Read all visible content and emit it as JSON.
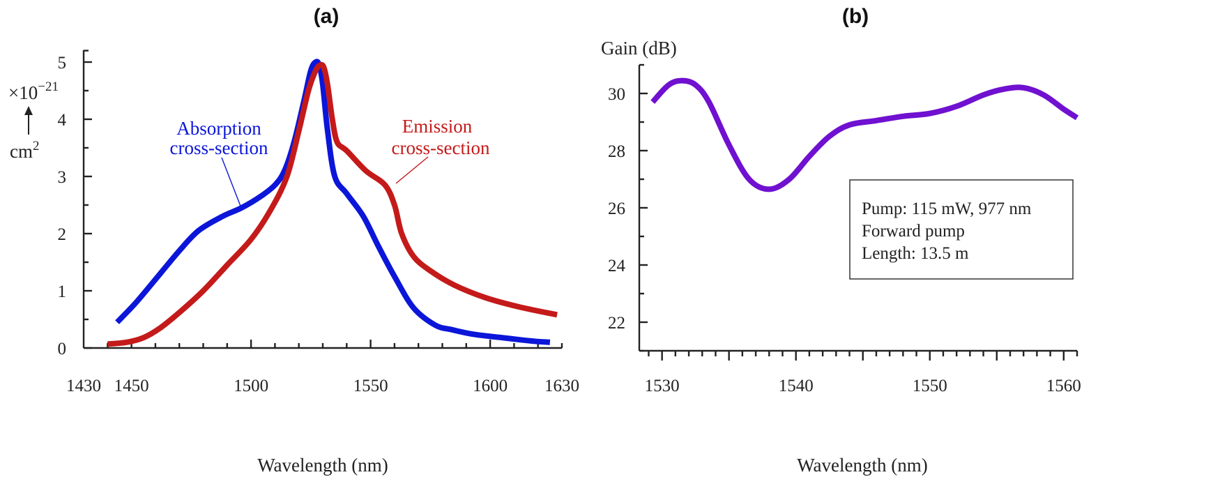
{
  "chart_data": [
    {
      "type": "line",
      "panel_label": "(a)",
      "xlabel": "Wavelength (nm)",
      "ylabel": "cm",
      "ylabel_exponent": "2",
      "y_multiplier": "×10",
      "y_multiplier_exponent": "−21",
      "xlim": [
        1430,
        1630
      ],
      "ylim": [
        0,
        5
      ],
      "x_ticks": [
        1430,
        1450,
        1500,
        1550,
        1600,
        1630
      ],
      "y_ticks": [
        0,
        1,
        2,
        3,
        4,
        5
      ],
      "series": [
        {
          "name": "Absorption cross-section",
          "label_line1": "Absorption",
          "label_line2": "cross-section",
          "color": "#0b16d9",
          "x": [
            1444,
            1452,
            1462,
            1470,
            1478,
            1488,
            1496,
            1504,
            1510,
            1514,
            1518,
            1522,
            1525,
            1527,
            1528.5,
            1530,
            1532,
            1535,
            1540,
            1547,
            1553,
            1560,
            1568,
            1577,
            1584,
            1593,
            1605,
            1618,
            1625
          ],
          "y": [
            0.45,
            0.8,
            1.3,
            1.7,
            2.05,
            2.3,
            2.45,
            2.65,
            2.85,
            3.1,
            3.6,
            4.3,
            4.85,
            5.0,
            4.95,
            4.6,
            3.8,
            3.0,
            2.7,
            2.3,
            1.8,
            1.25,
            0.7,
            0.4,
            0.32,
            0.24,
            0.18,
            0.12,
            0.1
          ]
        },
        {
          "name": "Emission cross-section",
          "label_line1": "Emission",
          "label_line2": "cross-section",
          "color": "#c41a1a",
          "x": [
            1440,
            1448,
            1455,
            1462,
            1470,
            1480,
            1490,
            1500,
            1508,
            1515,
            1520,
            1524,
            1527,
            1529,
            1530.5,
            1532,
            1534,
            1536,
            1540,
            1548,
            1556,
            1560,
            1563,
            1568,
            1575,
            1585,
            1598,
            1612,
            1628
          ],
          "y": [
            0.07,
            0.1,
            0.18,
            0.35,
            0.62,
            1.0,
            1.45,
            1.9,
            2.4,
            3.0,
            3.8,
            4.5,
            4.85,
            4.95,
            4.9,
            4.6,
            4.0,
            3.6,
            3.45,
            3.1,
            2.85,
            2.5,
            2.0,
            1.6,
            1.35,
            1.1,
            0.88,
            0.72,
            0.58
          ]
        }
      ]
    },
    {
      "type": "line",
      "panel_label": "(b)",
      "xlabel": "Wavelength (nm)",
      "ylabel": "Gain (dB)",
      "xlim": [
        1528.3,
        1561
      ],
      "ylim": [
        21,
        31
      ],
      "x_ticks": [
        1530,
        1540,
        1550,
        1560
      ],
      "y_ticks": [
        22,
        24,
        26,
        28,
        30
      ],
      "series": [
        {
          "name": "Gain",
          "color": "#7010d0",
          "x": [
            1529.3,
            1530.5,
            1531.5,
            1532.5,
            1533.5,
            1535,
            1536.5,
            1538,
            1539.5,
            1541,
            1542.5,
            1544,
            1546,
            1548,
            1550,
            1552,
            1554,
            1555.5,
            1557,
            1558.5,
            1560,
            1561
          ],
          "y": [
            29.7,
            30.3,
            30.45,
            30.3,
            29.7,
            28.2,
            27.0,
            26.65,
            27.0,
            27.8,
            28.5,
            28.9,
            29.05,
            29.2,
            29.3,
            29.55,
            29.95,
            30.15,
            30.2,
            29.95,
            29.45,
            29.15
          ]
        }
      ],
      "annotation_box": [
        "Pump: 115 mW, 977 nm",
        "Forward pump",
        "Length: 13.5 m"
      ]
    }
  ]
}
